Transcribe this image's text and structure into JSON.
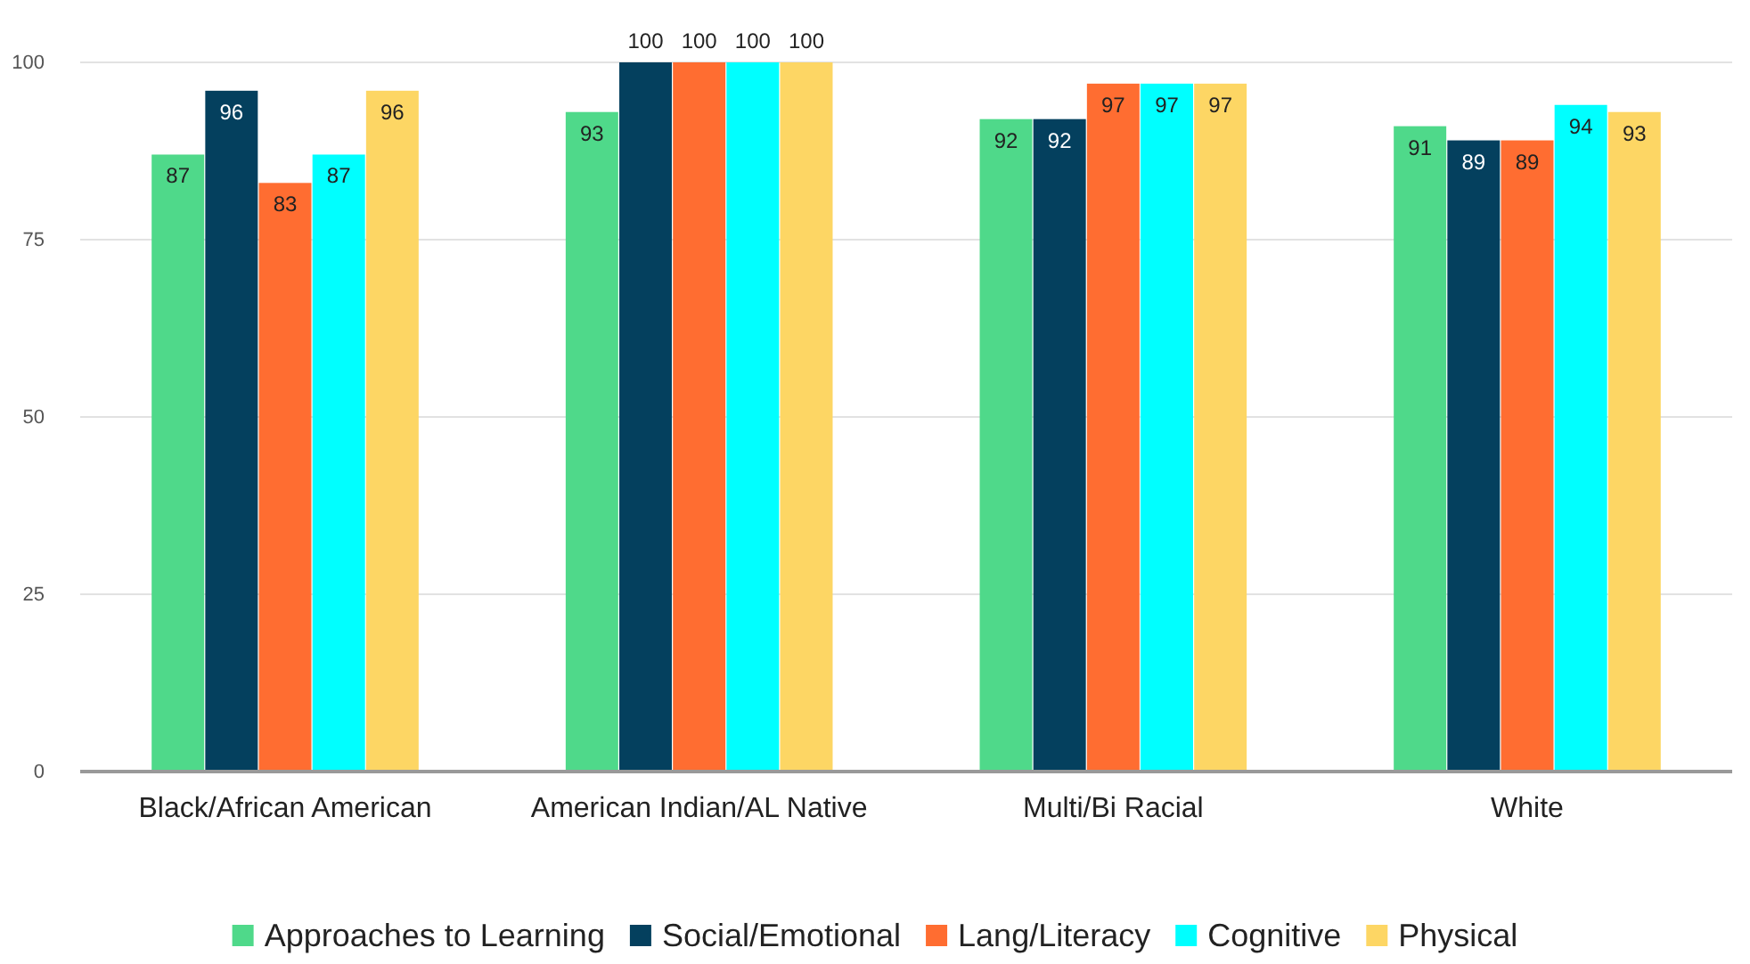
{
  "chart_data": {
    "type": "bar",
    "categories": [
      "Black/African American",
      "American Indian/AL Native",
      "Multi/Bi Racial",
      "White"
    ],
    "series": [
      {
        "name": "Approaches to Learning",
        "color": "#4fd98a",
        "values": [
          87,
          93,
          92,
          91
        ]
      },
      {
        "name": "Social/Emotional",
        "color": "#04405e",
        "values": [
          96,
          100,
          92,
          89
        ]
      },
      {
        "name": "Lang/Literacy",
        "color": "#ff6d31",
        "values": [
          83,
          100,
          97,
          89
        ]
      },
      {
        "name": "Cognitive",
        "color": "#00ffff",
        "values": [
          87,
          100,
          97,
          94
        ]
      },
      {
        "name": "Physical",
        "color": "#fdd664",
        "values": [
          96,
          100,
          97,
          93
        ]
      }
    ],
    "ylim": [
      0,
      100
    ],
    "yticks": [
      0,
      25,
      50,
      75,
      100
    ],
    "grid": "y",
    "legend": "bottom",
    "data_labels": true
  }
}
